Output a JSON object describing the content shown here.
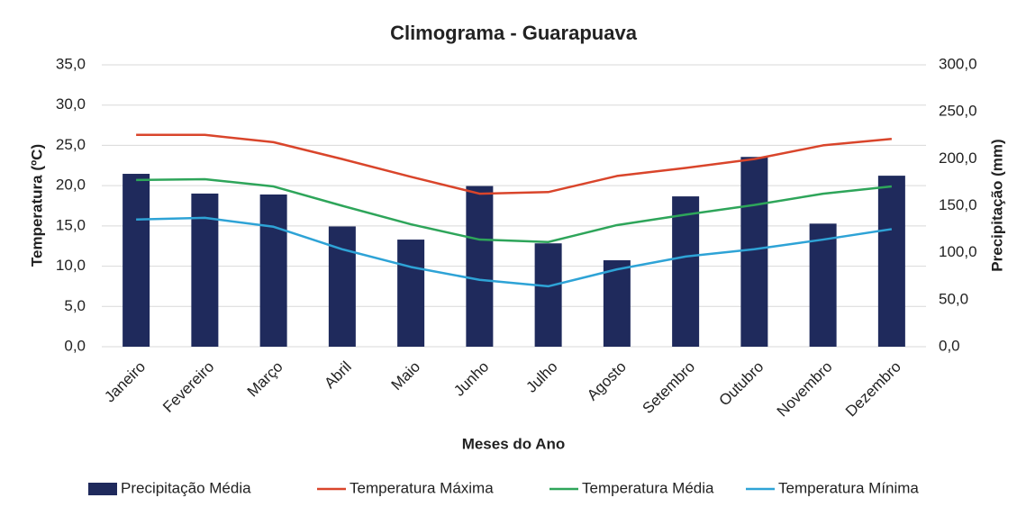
{
  "chart_data": {
    "type": "bar",
    "title": "Climograma - Guarapuava",
    "x_label": "Meses do Ano",
    "y_label": "Temperatura (ºC)",
    "y2_label": "Precipitação (mm)",
    "categories": [
      "Janeiro",
      "Fevereiro",
      "Março",
      "Abril",
      "Maio",
      "Junho",
      "Julho",
      "Agosto",
      "Setembro",
      "Outubro",
      "Novembro",
      "Dezembro"
    ],
    "ylim": [
      0,
      35
    ],
    "yticks": [
      {
        "value": 0,
        "label": "0,0"
      },
      {
        "value": 5,
        "label": "5,0"
      },
      {
        "value": 10,
        "label": "10,0"
      },
      {
        "value": 15,
        "label": "15,0"
      },
      {
        "value": 20,
        "label": "20,0"
      },
      {
        "value": 25,
        "label": "25,0"
      },
      {
        "value": 30,
        "label": "30,0"
      },
      {
        "value": 35,
        "label": "35,0"
      }
    ],
    "y2lim": [
      0,
      300
    ],
    "y2ticks": [
      {
        "value": 0,
        "label": "0,0"
      },
      {
        "value": 50,
        "label": "50,0"
      },
      {
        "value": 100,
        "label": "100,0"
      },
      {
        "value": 150,
        "label": "150,0"
      },
      {
        "value": 200,
        "label": "200,0"
      },
      {
        "value": 250,
        "label": "250,0"
      },
      {
        "value": 300,
        "label": "300,0"
      }
    ],
    "grid": true,
    "legend": "bottom",
    "series": [
      {
        "name": "Precipitação Média",
        "type": "bar",
        "axis": "y2",
        "color": "#1f2a5c",
        "values": [
          184,
          163,
          162,
          128,
          114,
          171,
          110,
          92,
          160,
          202,
          131,
          182
        ]
      },
      {
        "name": "Temperatura Máxima",
        "type": "line",
        "color": "#d9452b",
        "values": [
          26.3,
          26.3,
          25.4,
          23.3,
          21.1,
          19.0,
          19.2,
          21.2,
          22.2,
          23.3,
          25.0,
          25.8
        ]
      },
      {
        "name": "Temperatura Média",
        "type": "line",
        "color": "#2ea55a",
        "values": [
          20.7,
          20.8,
          19.9,
          17.5,
          15.2,
          13.3,
          13.0,
          15.1,
          16.4,
          17.6,
          19.0,
          19.9
        ]
      },
      {
        "name": "Temperatura Mínima",
        "type": "line",
        "color": "#2ea3d6",
        "values": [
          15.8,
          16.0,
          14.9,
          12.1,
          9.9,
          8.3,
          7.5,
          9.6,
          11.2,
          12.1,
          13.3,
          14.6
        ]
      }
    ]
  }
}
